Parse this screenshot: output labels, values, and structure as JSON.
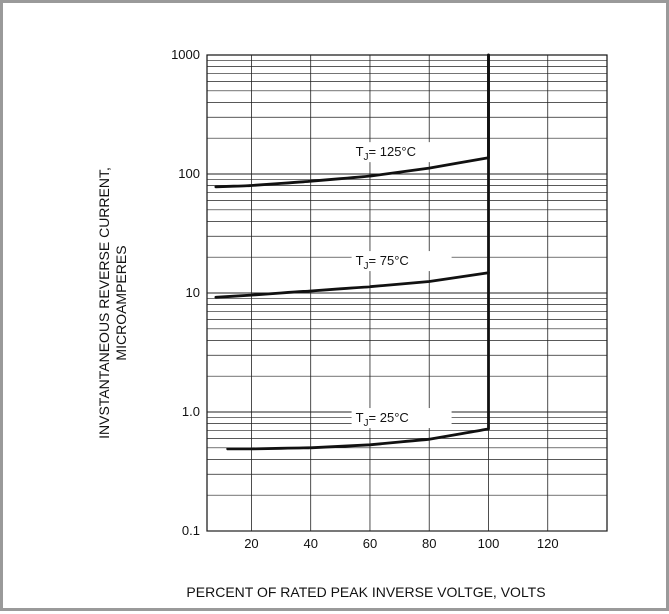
{
  "chart_data": {
    "type": "line",
    "title": "",
    "xlabel": "PERCENT OF RATED PEAK INVERSE VOLTGE, VOLTS",
    "ylabel_lines": [
      "INVSTANTANEOUS REVERSE CURRENT,",
      "MICROAMPERES"
    ],
    "xlim": [
      5,
      140
    ],
    "ylim": [
      0.1,
      1000
    ],
    "yscale": "log",
    "grid": true,
    "x_ticks": [
      "20",
      "40",
      "60",
      "80",
      "100",
      "120"
    ],
    "y_ticks": [
      "0.1",
      "1.0",
      "10",
      "100",
      "1000"
    ],
    "series": [
      {
        "name": "T_J = 125°C",
        "label_main": "T",
        "label_sub": "J",
        "label_rest": "= 125°C",
        "x": [
          8,
          20,
          40,
          60,
          80,
          100,
          100
        ],
        "y": [
          78,
          80,
          87,
          96,
          112,
          137,
          1000
        ]
      },
      {
        "name": "T_J = 75°C",
        "label_main": "T",
        "label_sub": "J",
        "label_rest": "= 75°C",
        "x": [
          8,
          20,
          40,
          60,
          80,
          100
        ],
        "y": [
          9.2,
          9.6,
          10.4,
          11.3,
          12.5,
          14.8
        ]
      },
      {
        "name": "T_J = 25°C",
        "label_main": "T",
        "label_sub": "J",
        "label_rest": "= 25°C",
        "x": [
          12,
          20,
          40,
          60,
          80,
          100,
          100
        ],
        "y": [
          0.49,
          0.49,
          0.5,
          0.53,
          0.59,
          0.72,
          1000
        ]
      }
    ]
  }
}
